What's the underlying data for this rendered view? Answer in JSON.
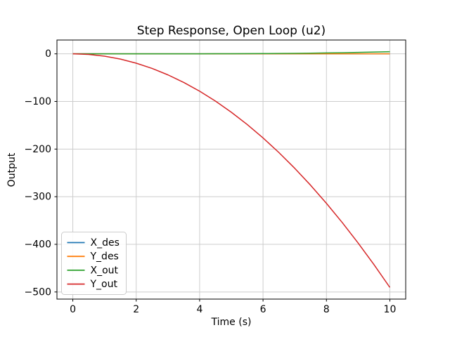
{
  "window": {
    "background": "#ffffff"
  },
  "colors": {
    "grid": "#cccccc",
    "spine": "#000000",
    "tick": "#000000",
    "text": "#000000",
    "legend_background": "#ffffff",
    "legend_border": "#cccccc"
  },
  "chart_data": {
    "type": "line",
    "title": "Step Response, Open Loop (u2)",
    "xlabel": "Time (s)",
    "ylabel": "Output",
    "xlim": [
      -0.5,
      10.5
    ],
    "ylim": [
      -515,
      29
    ],
    "xticks": [
      0,
      2,
      4,
      6,
      8,
      10
    ],
    "yticks": [
      0,
      -100,
      -200,
      -300,
      -400,
      -500
    ],
    "grid": true,
    "legend_position": "lower left",
    "series": [
      {
        "name": "X_des",
        "color": "#1f77b4",
        "points": [
          [
            0,
            0
          ],
          [
            10,
            0
          ]
        ]
      },
      {
        "name": "Y_des",
        "color": "#ff7f0e",
        "points": [
          [
            0,
            0
          ],
          [
            10,
            0
          ]
        ]
      },
      {
        "name": "X_out",
        "color": "#2ca02c",
        "points": [
          [
            0,
            0
          ],
          [
            0.5,
            0
          ],
          [
            1,
            0.0005
          ],
          [
            1.5,
            0.0023
          ],
          [
            2,
            0.0072
          ],
          [
            2.5,
            0.0176
          ],
          [
            3,
            0.0365
          ],
          [
            3.5,
            0.0675
          ],
          [
            4,
            0.1152
          ],
          [
            4.5,
            0.1845
          ],
          [
            5,
            0.2813
          ],
          [
            5.5,
            0.4118
          ],
          [
            6,
            0.5832
          ],
          [
            6.5,
            0.8034
          ],
          [
            7,
            1.0805
          ],
          [
            7.5,
            1.4238
          ],
          [
            8,
            1.8432
          ],
          [
            8.5,
            2.3491
          ],
          [
            9,
            2.9525
          ],
          [
            9.5,
            3.6653
          ],
          [
            10,
            4.5
          ]
        ]
      },
      {
        "name": "Y_out",
        "color": "#d62728",
        "points": [
          [
            0,
            0
          ],
          [
            0.5,
            -1.23
          ],
          [
            1,
            -4.91
          ],
          [
            1.5,
            -11.04
          ],
          [
            2,
            -19.62
          ],
          [
            2.5,
            -30.66
          ],
          [
            3,
            -44.15
          ],
          [
            3.5,
            -60.09
          ],
          [
            4,
            -78.48
          ],
          [
            4.5,
            -99.33
          ],
          [
            5,
            -122.63
          ],
          [
            5.5,
            -148.38
          ],
          [
            6,
            -176.58
          ],
          [
            6.5,
            -207.24
          ],
          [
            7,
            -240.35
          ],
          [
            7.5,
            -275.91
          ],
          [
            8,
            -313.92
          ],
          [
            8.5,
            -354.39
          ],
          [
            9,
            -397.31
          ],
          [
            9.5,
            -442.68
          ],
          [
            10,
            -490.5
          ]
        ]
      }
    ]
  }
}
